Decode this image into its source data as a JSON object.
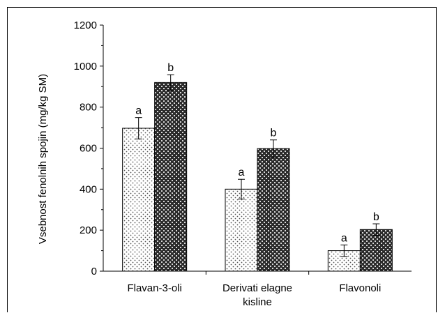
{
  "chart_data": {
    "type": "bar",
    "ylabel": "Vsebnost fenolnih spojin (mg/kg SM)",
    "xlabel": "",
    "ylim": [
      0,
      1200
    ],
    "yticks": [
      0,
      200,
      400,
      600,
      800,
      1000,
      1200
    ],
    "categories": [
      "Flavan-3-oli",
      "Derivati elagne kisline",
      "Flavonoli"
    ],
    "series": [
      {
        "values": [
          697,
          400,
          100
        ],
        "errors": [
          52,
          48,
          28
        ],
        "labels": [
          "a",
          "a",
          "a"
        ],
        "pattern": "dotted",
        "fill": "#ffffff",
        "dot_color": "#555555"
      },
      {
        "values": [
          920,
          598,
          203
        ],
        "errors": [
          38,
          42,
          28
        ],
        "labels": [
          "b",
          "b",
          "b"
        ],
        "pattern": "crosshatch",
        "fill": "#2b2b2b",
        "dot_color": "#d8d8d8"
      }
    ],
    "grid": false,
    "legend": "none"
  }
}
